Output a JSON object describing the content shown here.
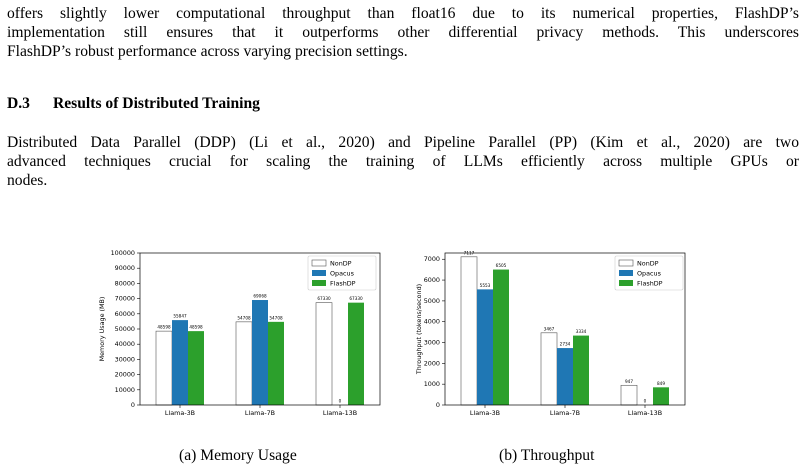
{
  "paragraph_1": {
    "lines": [
      "offers slightly lower computational throughput than float16 due to its numerical properties, FlashDP’s",
      "implementation still ensures that it outperforms other differential privacy methods. This underscores",
      "FlashDP’s robust performance across varying precision settings."
    ]
  },
  "section": {
    "number": "D.3",
    "title": "Results of Distributed Training"
  },
  "paragraph_2": {
    "lines": [
      "Distributed Data Parallel (DDP) (Li et al., 2020) and Pipeline Parallel (PP) (Kim et al., 2020) are two",
      "advanced techniques crucial for scaling the training of LLMs efficiently across multiple GPUs or",
      "nodes."
    ]
  },
  "colors": {
    "NonDP": "#ffffff",
    "Opacus": "#1f77b4",
    "FlashDP": "#2ca02c",
    "edge": "#333333"
  },
  "chart_data": [
    {
      "type": "bar",
      "categories": [
        "Llama-3B",
        "Llama-7B",
        "Llama-13B"
      ],
      "series": [
        {
          "name": "NonDP",
          "values": [
            48598,
            54708,
            67330
          ],
          "labels": [
            "48598",
            "54708",
            "67330"
          ]
        },
        {
          "name": "Opacus",
          "values": [
            55847,
            69068,
            0
          ],
          "labels": [
            "55847",
            "69068",
            "0"
          ]
        },
        {
          "name": "FlashDP",
          "values": [
            48598,
            54708,
            67330
          ],
          "labels": [
            "48598",
            "54708",
            "67330"
          ]
        }
      ],
      "ylabel": "Memory Usage (MB)",
      "ylim": [
        0,
        100000
      ],
      "yticks": [
        "0",
        "10000",
        "20000",
        "30000",
        "40000",
        "50000",
        "60000",
        "70000",
        "80000",
        "90000",
        "100000"
      ],
      "legend": "top-right",
      "caption": "(a) Memory Usage"
    },
    {
      "type": "bar",
      "categories": [
        "Llama-3B",
        "Llama-7B",
        "Llama-13B"
      ],
      "series": [
        {
          "name": "NonDP",
          "values": [
            7117,
            3467,
            947
          ],
          "labels": [
            "7117",
            "3467",
            "947"
          ]
        },
        {
          "name": "Opacus",
          "values": [
            5553,
            2734,
            0
          ],
          "labels": [
            "5553",
            "2734",
            "0"
          ]
        },
        {
          "name": "FlashDP",
          "values": [
            6505,
            3334,
            849
          ],
          "labels": [
            "6505",
            "3334",
            "849"
          ]
        }
      ],
      "ylabel": "Throughput (tokens/second)",
      "ylim": [
        0,
        7300
      ],
      "yticks": [
        "0",
        "1000",
        "2000",
        "3000",
        "4000",
        "5000",
        "6000",
        "7000"
      ],
      "legend": "top-right",
      "caption": "(b) Throughput"
    }
  ]
}
